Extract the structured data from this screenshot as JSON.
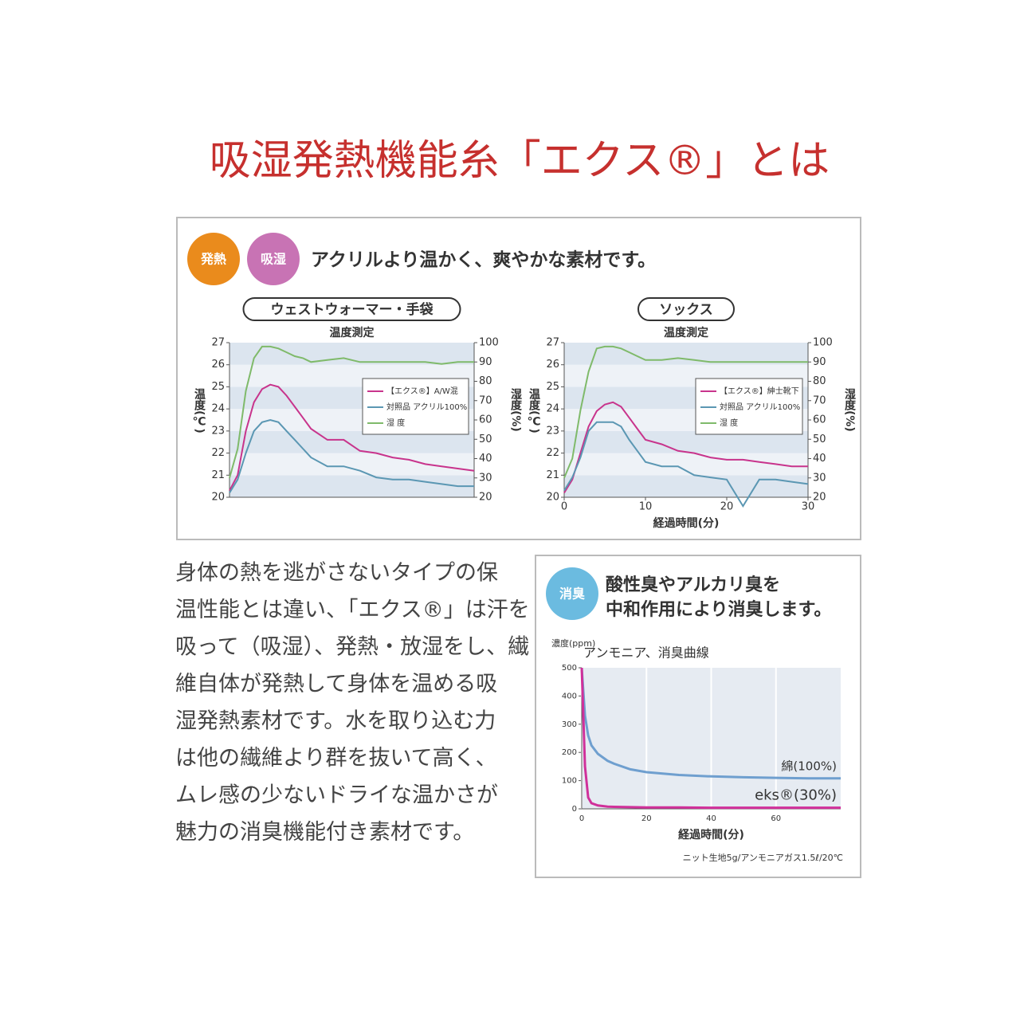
{
  "header": {
    "title": "吸湿発熱機能糸「エクス®」とは"
  },
  "heat_panel": {
    "badges": [
      "発熱",
      "吸湿"
    ],
    "tagline": "アクリルより温かく、爽やかな素材です。"
  },
  "body": [
    "身体の熱を逃がさないタイプの保",
    "温性能とは違い、「エクス®」は汗を",
    "吸って（吸湿）、発熱・放湿をし、繊",
    "維自体が発熱して身体を温める吸",
    "湿発熱素材です。水を取り込む力",
    "は他の繊維より群を抜いて高く、",
    "ムレ感の少ないドライな温かさが",
    "魅力の消臭機能付き素材です。"
  ],
  "deodor_panel": {
    "badge": "消臭",
    "tagline": [
      "酸性臭やアルカリ臭を",
      "中和作用により消臭します。"
    ],
    "note": "ニット生地5g/アンモニアガス1.5ℓ/20℃"
  },
  "chart_data": [
    {
      "type": "line",
      "title": "ウェストウォーマー・手袋",
      "subtitle": "温度測定",
      "ylabel": "温度(℃)",
      "y2label": "湿度(%)",
      "x": [
        0,
        1,
        2,
        3,
        4,
        5,
        6,
        7,
        8,
        9,
        10,
        12,
        14,
        16,
        18,
        20,
        22,
        24,
        26,
        28,
        30
      ],
      "xlim": [
        0,
        30
      ],
      "ylim": [
        20,
        27
      ],
      "yticks": [
        20,
        21,
        22,
        23,
        24,
        25,
        26,
        27
      ],
      "y2lim": [
        20,
        100
      ],
      "y2ticks": [
        20,
        30,
        40,
        50,
        60,
        70,
        80,
        90,
        100
      ],
      "legend": "upper right",
      "series": [
        {
          "name": "【エクス®】A/W混",
          "color": "#c8348c",
          "values": [
            20.3,
            21.0,
            23.0,
            24.3,
            24.9,
            25.1,
            25.0,
            24.6,
            24.1,
            23.6,
            23.1,
            22.6,
            22.6,
            22.1,
            22.0,
            21.8,
            21.7,
            21.5,
            21.4,
            21.3,
            21.2
          ]
        },
        {
          "name": "対照品 アクリル100%",
          "color": "#5b97b3",
          "values": [
            20.2,
            20.8,
            22.0,
            23.0,
            23.4,
            23.5,
            23.4,
            23.0,
            22.6,
            22.2,
            21.8,
            21.4,
            21.4,
            21.2,
            20.9,
            20.8,
            20.8,
            20.7,
            20.6,
            20.5,
            20.5
          ]
        },
        {
          "name": "湿 度",
          "color": "#7fba6a",
          "axis": "y2",
          "values": [
            30,
            45,
            75,
            92,
            98,
            98,
            97,
            95,
            93,
            92,
            90,
            91,
            92,
            90,
            90,
            90,
            90,
            90,
            89,
            90,
            90
          ]
        }
      ]
    },
    {
      "type": "line",
      "title": "ソックス",
      "subtitle": "温度測定",
      "ylabel": "温度(℃)",
      "y2label": "湿度(%)",
      "xlabel": "経過時間(分)",
      "x": [
        0,
        1,
        2,
        3,
        4,
        5,
        6,
        7,
        8,
        9,
        10,
        12,
        14,
        16,
        18,
        20,
        22,
        24,
        26,
        28,
        30
      ],
      "xlim": [
        0,
        30
      ],
      "xticks": [
        0,
        10,
        20,
        30
      ],
      "ylim": [
        20,
        27
      ],
      "yticks": [
        20,
        21,
        22,
        23,
        24,
        25,
        26,
        27
      ],
      "y2lim": [
        20,
        100
      ],
      "y2ticks": [
        20,
        30,
        40,
        50,
        60,
        70,
        80,
        90,
        100
      ],
      "legend": "upper right",
      "series": [
        {
          "name": "【エクス®】紳士靴下",
          "color": "#c8348c",
          "values": [
            20.2,
            20.8,
            22.0,
            23.2,
            23.9,
            24.2,
            24.3,
            24.1,
            23.6,
            23.1,
            22.6,
            22.4,
            22.1,
            22.0,
            21.8,
            21.7,
            21.7,
            21.6,
            21.5,
            21.4,
            21.4
          ]
        },
        {
          "name": "対照品 アクリル100%",
          "color": "#5b97b3",
          "values": [
            20.3,
            20.9,
            21.8,
            23.0,
            23.4,
            23.4,
            23.4,
            23.2,
            22.6,
            22.1,
            21.6,
            21.4,
            21.4,
            21.0,
            20.9,
            20.8,
            19.6,
            20.8,
            20.8,
            20.7,
            20.6
          ]
        },
        {
          "name": "湿 度",
          "color": "#7fba6a",
          "axis": "y2",
          "values": [
            30,
            40,
            65,
            85,
            97,
            98,
            98,
            97,
            95,
            93,
            91,
            91,
            92,
            91,
            90,
            90,
            90,
            90,
            90,
            90,
            90
          ]
        }
      ]
    },
    {
      "type": "line",
      "title": "アンモニア、消臭曲線",
      "ylabel": "濃度(ppm)",
      "xlabel": "経過時間(分)",
      "x": [
        0,
        1,
        2,
        3,
        5,
        8,
        10,
        15,
        20,
        30,
        40,
        50,
        60,
        70,
        80
      ],
      "xlim": [
        0,
        80
      ],
      "xticks": [
        0,
        20,
        40,
        60
      ],
      "ylim": [
        0,
        500
      ],
      "yticks": [
        0,
        100,
        200,
        300,
        400,
        500
      ],
      "legend": "inline",
      "series": [
        {
          "name": "綿(100%)",
          "color": "#6f9fcf",
          "values": [
            500,
            330,
            260,
            225,
            195,
            170,
            160,
            140,
            130,
            120,
            115,
            112,
            110,
            108,
            108
          ]
        },
        {
          "name": "eks®(30%)",
          "color": "#d0309a",
          "values": [
            500,
            150,
            40,
            20,
            12,
            8,
            7,
            6,
            5,
            5,
            4,
            4,
            4,
            4,
            4
          ]
        }
      ]
    }
  ]
}
